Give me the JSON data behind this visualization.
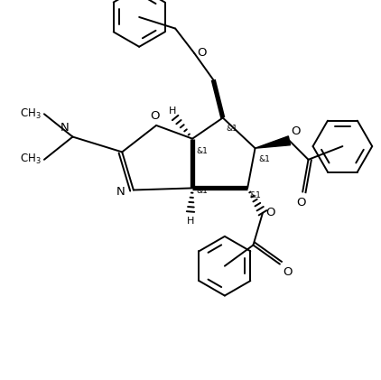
{
  "background": "#ffffff",
  "line_color": "#000000",
  "lw": 1.4,
  "blw": 3.8,
  "figsize": [
    4.22,
    4.21
  ],
  "dpi": 100,
  "xlim": [
    0,
    10
  ],
  "ylim": [
    0,
    10
  ]
}
